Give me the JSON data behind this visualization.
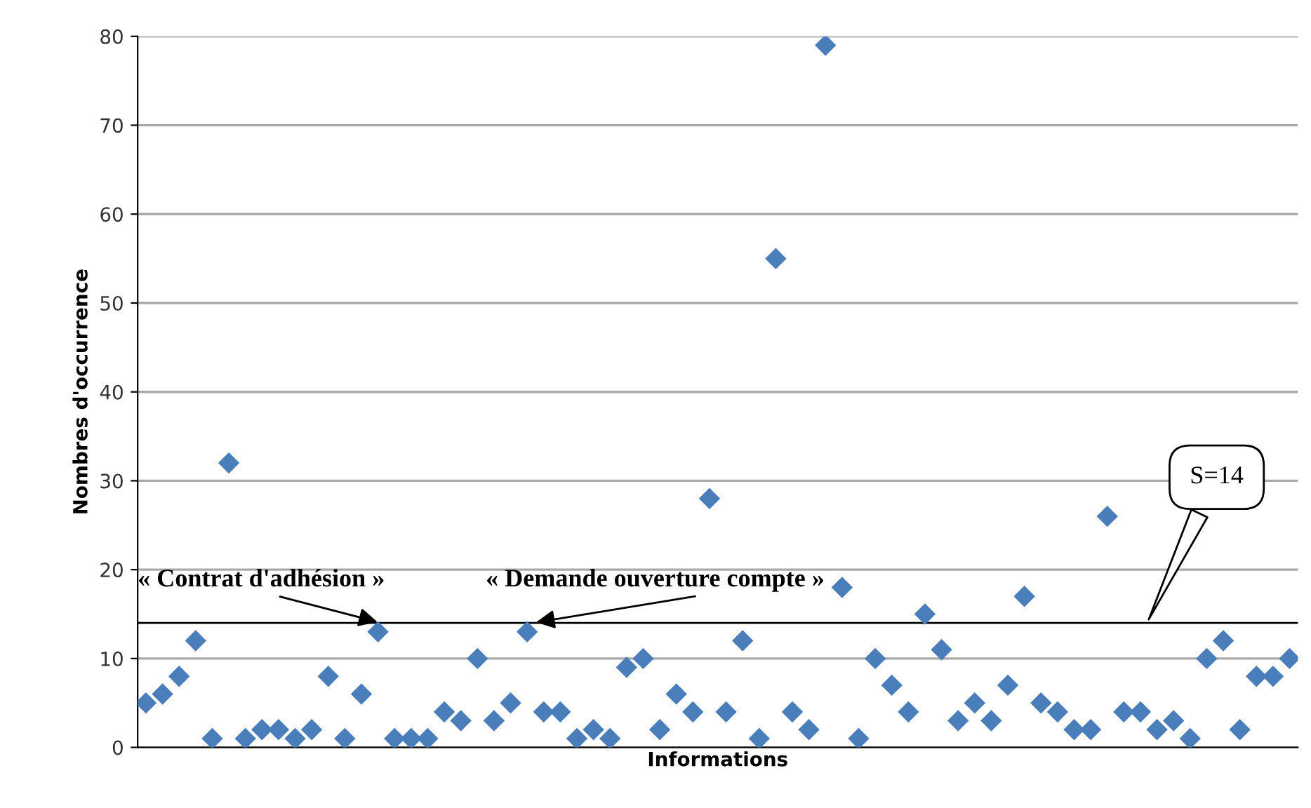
{
  "chart_data": {
    "type": "scatter",
    "xlabel": "Informations",
    "ylabel": "Nombres d'occurrence",
    "categories": [
      null,
      null,
      null,
      null,
      null,
      null,
      null,
      null,
      null,
      null,
      null,
      null,
      null,
      null,
      null,
      null,
      null,
      null,
      null,
      null,
      null,
      null,
      null,
      null,
      null,
      null,
      null,
      null,
      null,
      null,
      null,
      null,
      null,
      null,
      null,
      null,
      null,
      null,
      null,
      null,
      null,
      null,
      null,
      null,
      null,
      null,
      null,
      null,
      null,
      null,
      null,
      null,
      null,
      null,
      null,
      null,
      null,
      null,
      null,
      null,
      null,
      null,
      null,
      null,
      null,
      null,
      null,
      null,
      null,
      null
    ],
    "series": [
      {
        "color": "#4a7ebb",
        "values": [
          5,
          6,
          8,
          12,
          1,
          32,
          1,
          2,
          2,
          1,
          2,
          8,
          1,
          6,
          13,
          1,
          1,
          1,
          4,
          3,
          10,
          3,
          5,
          13,
          4,
          4,
          1,
          2,
          1,
          9,
          10,
          2,
          6,
          4,
          28,
          4,
          12,
          1,
          55,
          4,
          2,
          79,
          18,
          1,
          10,
          7,
          4,
          15,
          11,
          3,
          5,
          3,
          7,
          17,
          5,
          4,
          2,
          2,
          26,
          4,
          4,
          2,
          3,
          1,
          10,
          12,
          2,
          8,
          8,
          10
        ]
      }
    ],
    "ylim": [
      0,
      80
    ],
    "yticks": [
      0,
      10,
      20,
      30,
      40,
      50,
      60,
      70,
      80
    ],
    "marker": "diamond",
    "grid": "y",
    "tick_labels": "y",
    "ref_lines": [
      {
        "axis": "y",
        "value": 14,
        "label": "S=14",
        "color": "#000000"
      }
    ],
    "annotations": [
      "« Contrat d'adhésion »",
      "« Demande ouverture compte »"
    ]
  }
}
